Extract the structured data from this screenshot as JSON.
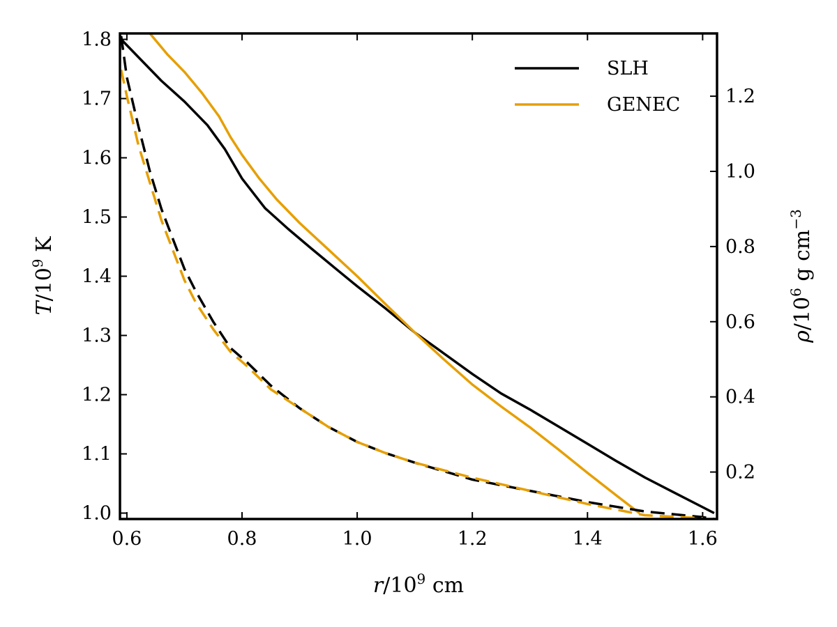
{
  "chart_data": {
    "type": "line",
    "title": "",
    "xlabel": {
      "prefix": "r",
      "mid": "/10",
      "sup": "9",
      "suffix": " cm"
    },
    "ylabel_left": {
      "prefix": "T",
      "mid": "/10",
      "sup": "9",
      "suffix": " K"
    },
    "ylabel_right": {
      "prefix": "ρ",
      "mid": "/10",
      "sup": "6",
      "suffix": " g cm",
      "sup2": "−3"
    },
    "xlim": [
      0.588,
      1.625
    ],
    "ylim_left": [
      0.99,
      1.81
    ],
    "ylim_right": [
      0.075,
      1.367
    ],
    "xticks": [
      0.6,
      0.8,
      1.0,
      1.2,
      1.4,
      1.6
    ],
    "xtick_labels": [
      "0.6",
      "0.8",
      "1.0",
      "1.2",
      "1.4",
      "1.6"
    ],
    "yticks_left": [
      1.0,
      1.1,
      1.2,
      1.3,
      1.4,
      1.5,
      1.6,
      1.7,
      1.8
    ],
    "ytick_labels_left": [
      "1.0",
      "1.1",
      "1.2",
      "1.3",
      "1.4",
      "1.5",
      "1.6",
      "1.7",
      "1.8"
    ],
    "yticks_right": [
      0.2,
      0.4,
      0.6,
      0.8,
      1.0,
      1.2
    ],
    "ytick_labels_right": [
      "0.2",
      "0.4",
      "0.6",
      "0.8",
      "1.0",
      "1.2"
    ],
    "legend": {
      "position": "top-right",
      "entries": [
        "SLH",
        "GENEC"
      ]
    },
    "colors": {
      "SLH": "#000000",
      "GENEC": "#e69f00"
    },
    "series": [
      {
        "name": "SLH",
        "quantity": "temperature",
        "axis": "left",
        "style": "solid",
        "x": [
          0.59,
          0.62,
          0.66,
          0.7,
          0.74,
          0.77,
          0.8,
          0.84,
          0.88,
          0.92,
          0.96,
          1.0,
          1.05,
          1.1,
          1.15,
          1.2,
          1.25,
          1.3,
          1.35,
          1.4,
          1.45,
          1.5,
          1.55,
          1.6,
          1.62
        ],
        "y": [
          1.8,
          1.77,
          1.73,
          1.695,
          1.655,
          1.615,
          1.565,
          1.515,
          1.48,
          1.447,
          1.415,
          1.383,
          1.345,
          1.305,
          1.27,
          1.235,
          1.202,
          1.175,
          1.146,
          1.117,
          1.088,
          1.06,
          1.035,
          1.01,
          1.0
        ]
      },
      {
        "name": "GENEC",
        "quantity": "temperature",
        "axis": "left",
        "style": "solid",
        "x": [
          0.64,
          0.67,
          0.7,
          0.73,
          0.76,
          0.78,
          0.8,
          0.83,
          0.86,
          0.9,
          0.95,
          1.0,
          1.05,
          1.1,
          1.15,
          1.2,
          1.25,
          1.3,
          1.35,
          1.4,
          1.45,
          1.49
        ],
        "y": [
          1.81,
          1.775,
          1.745,
          1.71,
          1.67,
          1.635,
          1.605,
          1.565,
          1.53,
          1.49,
          1.445,
          1.4,
          1.352,
          1.305,
          1.26,
          1.217,
          1.18,
          1.145,
          1.107,
          1.068,
          1.03,
          1.0
        ]
      },
      {
        "name": "SLH",
        "quantity": "density",
        "axis": "right",
        "style": "dashed",
        "x": [
          0.59,
          0.6,
          0.62,
          0.64,
          0.66,
          0.68,
          0.7,
          0.72,
          0.75,
          0.78,
          0.81,
          0.85,
          0.9,
          0.95,
          1.0,
          1.05,
          1.1,
          1.2,
          1.3,
          1.4,
          1.5,
          1.6,
          1.62
        ],
        "y": [
          1.36,
          1.25,
          1.12,
          1.0,
          0.9,
          0.82,
          0.74,
          0.68,
          0.6,
          0.53,
          0.49,
          0.43,
          0.37,
          0.32,
          0.28,
          0.25,
          0.225,
          0.18,
          0.15,
          0.12,
          0.095,
          0.08,
          0.075
        ]
      },
      {
        "name": "GENEC",
        "quantity": "density",
        "axis": "right",
        "style": "dashed",
        "x": [
          0.59,
          0.6,
          0.62,
          0.64,
          0.66,
          0.68,
          0.7,
          0.72,
          0.75,
          0.78,
          0.81,
          0.85,
          0.9,
          0.95,
          1.0,
          1.05,
          1.1,
          1.2,
          1.3,
          1.4,
          1.5,
          1.6
        ],
        "y": [
          1.27,
          1.2,
          1.07,
          0.97,
          0.87,
          0.79,
          0.71,
          0.65,
          0.58,
          0.52,
          0.48,
          0.42,
          0.37,
          0.32,
          0.28,
          0.25,
          0.225,
          0.185,
          0.15,
          0.115,
          0.085,
          0.077
        ]
      }
    ]
  }
}
